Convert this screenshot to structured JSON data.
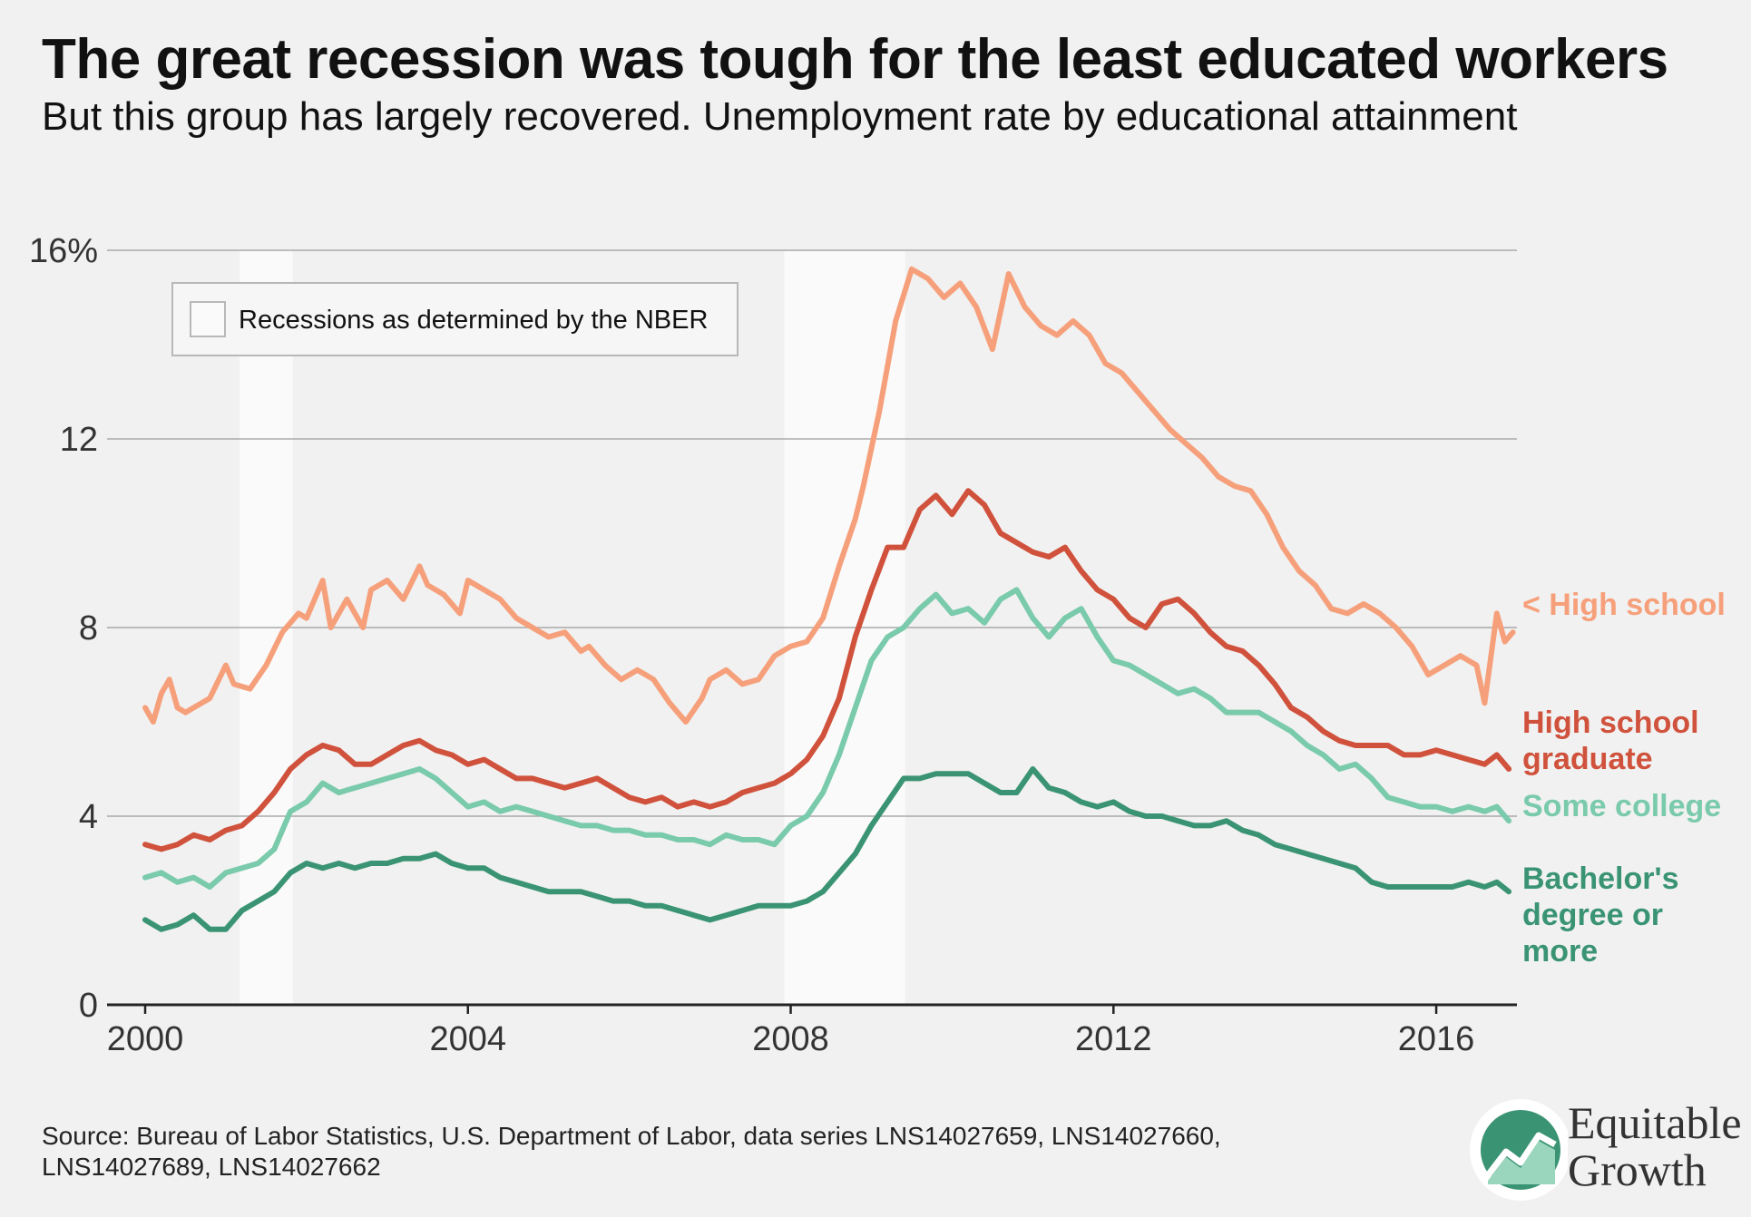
{
  "header": {
    "title": "The great recession was tough for the least educated workers",
    "subtitle": "But this group has largely recovered. Unemployment rate by educational attainment"
  },
  "legend": {
    "recession_label": "Recessions as determined by the NBER"
  },
  "footer": {
    "source": "Source: Bureau of Labor Statistics, U.S. Department of Labor, data series LNS14027659, LNS14027660, LNS14027689, LNS14027662",
    "logo_line1": "Equitable",
    "logo_line2": "Growth"
  },
  "chart_data": {
    "type": "line",
    "title": "The great recession was tough for the least educated workers",
    "subtitle": "But this group has largely recovered. Unemployment rate by educational attainment",
    "xlabel": "",
    "ylabel": "",
    "xlim": [
      2000,
      2017
    ],
    "ylim": [
      0,
      16
    ],
    "x_ticks": [
      {
        "value": 2000,
        "label": "2000"
      },
      {
        "value": 2004,
        "label": "2004"
      },
      {
        "value": 2008,
        "label": "2008"
      },
      {
        "value": 2012,
        "label": "2012"
      },
      {
        "value": 2016,
        "label": "2016"
      }
    ],
    "y_ticks": [
      {
        "value": 0,
        "label": "0"
      },
      {
        "value": 4,
        "label": "4"
      },
      {
        "value": 8,
        "label": "8"
      },
      {
        "value": 12,
        "label": "12"
      },
      {
        "value": 16,
        "label": "16%"
      }
    ],
    "grid": true,
    "recessions": [
      {
        "start": 2001.17,
        "end": 2001.83
      },
      {
        "start": 2007.92,
        "end": 2009.42
      }
    ],
    "series": [
      {
        "name": "< High school",
        "label_lines": [
          "< High school"
        ],
        "color": "#f6a07b",
        "x": [
          2000.0,
          2000.1,
          2000.2,
          2000.3,
          2000.4,
          2000.5,
          2000.6,
          2000.8,
          2001.0,
          2001.1,
          2001.3,
          2001.5,
          2001.7,
          2001.9,
          2002.0,
          2002.2,
          2002.3,
          2002.5,
          2002.7,
          2002.8,
          2003.0,
          2003.2,
          2003.4,
          2003.5,
          2003.7,
          2003.9,
          2004.0,
          2004.2,
          2004.4,
          2004.6,
          2004.8,
          2005.0,
          2005.2,
          2005.4,
          2005.5,
          2005.7,
          2005.9,
          2006.1,
          2006.3,
          2006.5,
          2006.7,
          2006.9,
          2007.0,
          2007.2,
          2007.4,
          2007.6,
          2007.8,
          2008.0,
          2008.2,
          2008.4,
          2008.6,
          2008.8,
          2008.9,
          2009.1,
          2009.3,
          2009.5,
          2009.7,
          2009.9,
          2010.1,
          2010.3,
          2010.5,
          2010.7,
          2010.9,
          2011.1,
          2011.3,
          2011.5,
          2011.7,
          2011.9,
          2012.1,
          2012.3,
          2012.5,
          2012.7,
          2012.9,
          2013.1,
          2013.3,
          2013.5,
          2013.7,
          2013.9,
          2014.1,
          2014.3,
          2014.5,
          2014.7,
          2014.9,
          2015.1,
          2015.3,
          2015.5,
          2015.7,
          2015.9,
          2016.1,
          2016.3,
          2016.5,
          2016.6,
          2016.75,
          2016.85,
          2016.95
        ],
        "y": [
          6.3,
          6.0,
          6.6,
          6.9,
          6.3,
          6.2,
          6.3,
          6.5,
          7.2,
          6.8,
          6.7,
          7.2,
          7.9,
          8.3,
          8.2,
          9.0,
          8.0,
          8.6,
          8.0,
          8.8,
          9.0,
          8.6,
          9.3,
          8.9,
          8.7,
          8.3,
          9.0,
          8.8,
          8.6,
          8.2,
          8.0,
          7.8,
          7.9,
          7.5,
          7.6,
          7.2,
          6.9,
          7.1,
          6.9,
          6.4,
          6.0,
          6.5,
          6.9,
          7.1,
          6.8,
          6.9,
          7.4,
          7.6,
          7.7,
          8.2,
          9.3,
          10.3,
          11.0,
          12.6,
          14.5,
          15.6,
          15.4,
          15.0,
          15.3,
          14.8,
          13.9,
          15.5,
          14.8,
          14.4,
          14.2,
          14.5,
          14.2,
          13.6,
          13.4,
          13.0,
          12.6,
          12.2,
          11.9,
          11.6,
          11.2,
          11.0,
          10.9,
          10.4,
          9.7,
          9.2,
          8.9,
          8.4,
          8.3,
          8.5,
          8.3,
          8.0,
          7.6,
          7.0,
          7.2,
          7.4,
          7.2,
          6.4,
          8.3,
          7.7,
          7.9
        ]
      },
      {
        "name": "High school graduate",
        "label_lines": [
          "High school",
          "graduate"
        ],
        "color": "#d0523c",
        "x": [
          2000.0,
          2000.2,
          2000.4,
          2000.6,
          2000.8,
          2001.0,
          2001.2,
          2001.4,
          2001.6,
          2001.8,
          2002.0,
          2002.2,
          2002.4,
          2002.6,
          2002.8,
          2003.0,
          2003.2,
          2003.4,
          2003.6,
          2003.8,
          2004.0,
          2004.2,
          2004.4,
          2004.6,
          2004.8,
          2005.0,
          2005.2,
          2005.4,
          2005.6,
          2005.8,
          2006.0,
          2006.2,
          2006.4,
          2006.6,
          2006.8,
          2007.0,
          2007.2,
          2007.4,
          2007.6,
          2007.8,
          2008.0,
          2008.2,
          2008.4,
          2008.6,
          2008.8,
          2009.0,
          2009.2,
          2009.4,
          2009.6,
          2009.8,
          2010.0,
          2010.2,
          2010.4,
          2010.6,
          2010.8,
          2011.0,
          2011.2,
          2011.4,
          2011.6,
          2011.8,
          2012.0,
          2012.2,
          2012.4,
          2012.6,
          2012.8,
          2013.0,
          2013.2,
          2013.4,
          2013.6,
          2013.8,
          2014.0,
          2014.2,
          2014.4,
          2014.6,
          2014.8,
          2015.0,
          2015.2,
          2015.4,
          2015.6,
          2015.8,
          2016.0,
          2016.2,
          2016.4,
          2016.6,
          2016.75,
          2016.9
        ],
        "y": [
          3.4,
          3.3,
          3.4,
          3.6,
          3.5,
          3.7,
          3.8,
          4.1,
          4.5,
          5.0,
          5.3,
          5.5,
          5.4,
          5.1,
          5.1,
          5.3,
          5.5,
          5.6,
          5.4,
          5.3,
          5.1,
          5.2,
          5.0,
          4.8,
          4.8,
          4.7,
          4.6,
          4.7,
          4.8,
          4.6,
          4.4,
          4.3,
          4.4,
          4.2,
          4.3,
          4.2,
          4.3,
          4.5,
          4.6,
          4.7,
          4.9,
          5.2,
          5.7,
          6.5,
          7.8,
          8.8,
          9.7,
          9.7,
          10.5,
          10.8,
          10.4,
          10.9,
          10.6,
          10.0,
          9.8,
          9.6,
          9.5,
          9.7,
          9.2,
          8.8,
          8.6,
          8.2,
          8.0,
          8.5,
          8.6,
          8.3,
          7.9,
          7.6,
          7.5,
          7.2,
          6.8,
          6.3,
          6.1,
          5.8,
          5.6,
          5.5,
          5.5,
          5.5,
          5.3,
          5.3,
          5.4,
          5.3,
          5.2,
          5.1,
          5.3,
          5.0
        ]
      },
      {
        "name": "Some college",
        "label_lines": [
          "Some college"
        ],
        "color": "#7acaac",
        "x": [
          2000.0,
          2000.2,
          2000.4,
          2000.6,
          2000.8,
          2001.0,
          2001.2,
          2001.4,
          2001.6,
          2001.8,
          2002.0,
          2002.2,
          2002.4,
          2002.6,
          2002.8,
          2003.0,
          2003.2,
          2003.4,
          2003.6,
          2003.8,
          2004.0,
          2004.2,
          2004.4,
          2004.6,
          2004.8,
          2005.0,
          2005.2,
          2005.4,
          2005.6,
          2005.8,
          2006.0,
          2006.2,
          2006.4,
          2006.6,
          2006.8,
          2007.0,
          2007.2,
          2007.4,
          2007.6,
          2007.8,
          2008.0,
          2008.2,
          2008.4,
          2008.6,
          2008.8,
          2009.0,
          2009.2,
          2009.4,
          2009.6,
          2009.8,
          2010.0,
          2010.2,
          2010.4,
          2010.6,
          2010.8,
          2011.0,
          2011.2,
          2011.4,
          2011.6,
          2011.8,
          2012.0,
          2012.2,
          2012.4,
          2012.6,
          2012.8,
          2013.0,
          2013.2,
          2013.4,
          2013.6,
          2013.8,
          2014.0,
          2014.2,
          2014.4,
          2014.6,
          2014.8,
          2015.0,
          2015.2,
          2015.4,
          2015.6,
          2015.8,
          2016.0,
          2016.2,
          2016.4,
          2016.6,
          2016.75,
          2016.9
        ],
        "y": [
          2.7,
          2.8,
          2.6,
          2.7,
          2.5,
          2.8,
          2.9,
          3.0,
          3.3,
          4.1,
          4.3,
          4.7,
          4.5,
          4.6,
          4.7,
          4.8,
          4.9,
          5.0,
          4.8,
          4.5,
          4.2,
          4.3,
          4.1,
          4.2,
          4.1,
          4.0,
          3.9,
          3.8,
          3.8,
          3.7,
          3.7,
          3.6,
          3.6,
          3.5,
          3.5,
          3.4,
          3.6,
          3.5,
          3.5,
          3.4,
          3.8,
          4.0,
          4.5,
          5.3,
          6.3,
          7.3,
          7.8,
          8.0,
          8.4,
          8.7,
          8.3,
          8.4,
          8.1,
          8.6,
          8.8,
          8.2,
          7.8,
          8.2,
          8.4,
          7.8,
          7.3,
          7.2,
          7.0,
          6.8,
          6.6,
          6.7,
          6.5,
          6.2,
          6.2,
          6.2,
          6.0,
          5.8,
          5.5,
          5.3,
          5.0,
          5.1,
          4.8,
          4.4,
          4.3,
          4.2,
          4.2,
          4.1,
          4.2,
          4.1,
          4.2,
          3.9
        ]
      },
      {
        "name": "Bachelor's degree or more",
        "label_lines": [
          "Bachelor's",
          "degree or",
          "more"
        ],
        "color": "#3a9474",
        "x": [
          2000.0,
          2000.2,
          2000.4,
          2000.6,
          2000.8,
          2001.0,
          2001.2,
          2001.4,
          2001.6,
          2001.8,
          2002.0,
          2002.2,
          2002.4,
          2002.6,
          2002.8,
          2003.0,
          2003.2,
          2003.4,
          2003.6,
          2003.8,
          2004.0,
          2004.2,
          2004.4,
          2004.6,
          2004.8,
          2005.0,
          2005.2,
          2005.4,
          2005.6,
          2005.8,
          2006.0,
          2006.2,
          2006.4,
          2006.6,
          2006.8,
          2007.0,
          2007.2,
          2007.4,
          2007.6,
          2007.8,
          2008.0,
          2008.2,
          2008.4,
          2008.6,
          2008.8,
          2009.0,
          2009.2,
          2009.4,
          2009.6,
          2009.8,
          2010.0,
          2010.2,
          2010.4,
          2010.6,
          2010.8,
          2011.0,
          2011.2,
          2011.4,
          2011.6,
          2011.8,
          2012.0,
          2012.2,
          2012.4,
          2012.6,
          2012.8,
          2013.0,
          2013.2,
          2013.4,
          2013.6,
          2013.8,
          2014.0,
          2014.2,
          2014.4,
          2014.6,
          2014.8,
          2015.0,
          2015.2,
          2015.4,
          2015.6,
          2015.8,
          2016.0,
          2016.2,
          2016.4,
          2016.6,
          2016.75,
          2016.9
        ],
        "y": [
          1.8,
          1.6,
          1.7,
          1.9,
          1.6,
          1.6,
          2.0,
          2.2,
          2.4,
          2.8,
          3.0,
          2.9,
          3.0,
          2.9,
          3.0,
          3.0,
          3.1,
          3.1,
          3.2,
          3.0,
          2.9,
          2.9,
          2.7,
          2.6,
          2.5,
          2.4,
          2.4,
          2.4,
          2.3,
          2.2,
          2.2,
          2.1,
          2.1,
          2.0,
          1.9,
          1.8,
          1.9,
          2.0,
          2.1,
          2.1,
          2.1,
          2.2,
          2.4,
          2.8,
          3.2,
          3.8,
          4.3,
          4.8,
          4.8,
          4.9,
          4.9,
          4.9,
          4.7,
          4.5,
          4.5,
          5.0,
          4.6,
          4.5,
          4.3,
          4.2,
          4.3,
          4.1,
          4.0,
          4.0,
          3.9,
          3.8,
          3.8,
          3.9,
          3.7,
          3.6,
          3.4,
          3.3,
          3.2,
          3.1,
          3.0,
          2.9,
          2.6,
          2.5,
          2.5,
          2.5,
          2.5,
          2.5,
          2.6,
          2.5,
          2.6,
          2.4
        ]
      }
    ]
  }
}
